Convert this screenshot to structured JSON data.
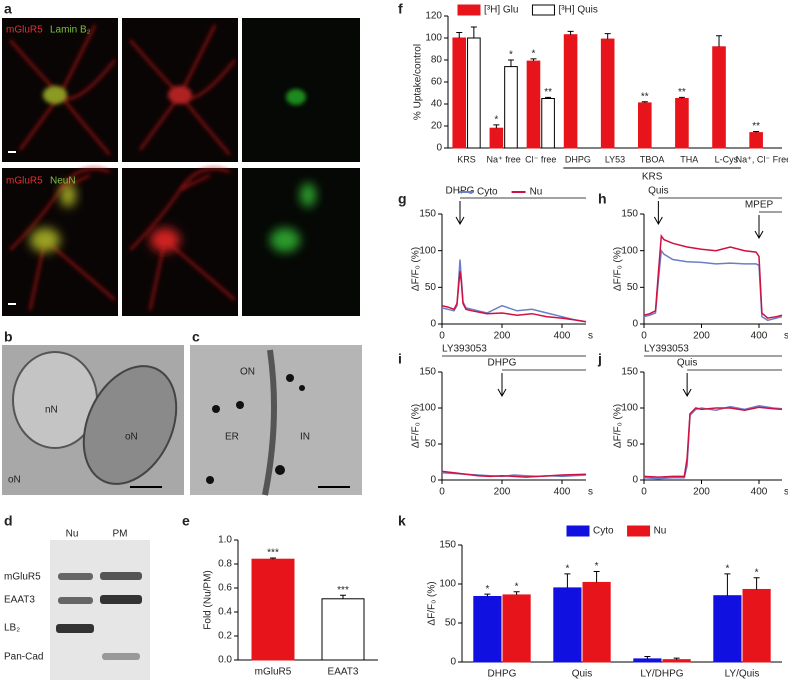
{
  "panel_letters": [
    "a",
    "b",
    "c",
    "d",
    "e",
    "f",
    "g",
    "h",
    "i",
    "j",
    "k"
  ],
  "panel_a": {
    "top_labels": [
      "mGluR5",
      "Lamin B₂"
    ],
    "bottom_labels": [
      "mGluR5",
      "NeuN"
    ]
  },
  "panel_b": {
    "labels": [
      "nN",
      "oN",
      "oN"
    ]
  },
  "panel_c": {
    "labels": [
      "ON",
      "ER",
      "IN"
    ]
  },
  "panel_d": {
    "columns": [
      "Nu",
      "PM"
    ],
    "rows": [
      "mGluR5",
      "EAAT3",
      "LB₂",
      "Pan-Cad"
    ]
  },
  "chart_data": [
    {
      "type": "bar",
      "ylabel": "% Uptake/control",
      "categories": [
        "KRS",
        "Na⁺ free",
        "Cl⁻ free",
        "DHPG",
        "LY53",
        "TBOA",
        "THA",
        "L-Cys",
        "Na⁺, Cl⁻ Free"
      ],
      "group_label": "KRS",
      "series": [
        {
          "name": "[³H] Glu",
          "color": "#e8141b",
          "values": [
            100,
            18,
            79,
            103,
            99,
            41,
            45,
            92,
            14
          ],
          "errors": [
            5,
            3,
            2,
            3,
            5,
            1,
            1,
            10,
            1
          ],
          "significance": [
            null,
            "*",
            "*",
            null,
            null,
            "**",
            "**",
            null,
            "**"
          ]
        },
        {
          "name": "[³H] Quis",
          "color": "#ffffff",
          "values": [
            100,
            74,
            45,
            null,
            null,
            null,
            null,
            null,
            null
          ],
          "errors": [
            10,
            6,
            1,
            null,
            null,
            null,
            null,
            null,
            null
          ],
          "significance": [
            null,
            "*",
            "**",
            null,
            null,
            null,
            null,
            null,
            null
          ]
        }
      ],
      "ylim": [
        0,
        120
      ],
      "yticks": [
        0,
        20,
        40,
        60,
        80,
        100,
        120
      ]
    },
    {
      "type": "bar",
      "ylabel": "Fold (Nu/PM)",
      "categories": [
        "mGluR5",
        "EAAT3"
      ],
      "series": [
        {
          "colors": [
            "#e8141b",
            "#ffffff"
          ],
          "values": [
            0.84,
            0.51
          ],
          "errors": [
            0.01,
            0.03
          ],
          "significance": [
            "***",
            "***"
          ]
        }
      ],
      "ylim": [
        0,
        1.0
      ],
      "yticks": [
        {
          "value": 0,
          "label": "0.0"
        },
        0.2,
        0.4,
        0.6,
        0.8,
        {
          "value": 1.0,
          "label": "1.0"
        }
      ]
    },
    {
      "type": "bar",
      "ylabel": "ΔF/F₀ (%)",
      "categories": [
        "DHPG",
        "Quis",
        "LY/DHPG",
        "LY/Quis"
      ],
      "series": [
        {
          "name": "Cyto",
          "color": "#1010e0",
          "values": [
            84,
            95,
            4,
            85
          ],
          "errors": [
            3,
            18,
            3,
            28
          ],
          "significance": [
            "*",
            "*",
            null,
            "*"
          ]
        },
        {
          "name": "Nu",
          "color": "#e8141b",
          "values": [
            86,
            102,
            3,
            93
          ],
          "errors": [
            4,
            14,
            2,
            15
          ],
          "significance": [
            "*",
            "*",
            null,
            "*"
          ]
        }
      ],
      "ylim": [
        0,
        150
      ],
      "yticks": [
        0,
        50,
        100,
        150
      ]
    },
    {
      "type": "line",
      "ylabel": "ΔF/F₀ (%)",
      "xlabel": "s",
      "annotations": [
        {
          "text": "DHPG",
          "x": 60
        }
      ],
      "x": [
        0,
        20,
        40,
        50,
        60,
        65,
        70,
        80,
        100,
        150,
        200,
        250,
        300,
        350,
        400,
        450,
        480
      ],
      "series": [
        {
          "name": "Cyto",
          "color": "#6a7fc8",
          "values": [
            22,
            20,
            18,
            25,
            88,
            60,
            30,
            22,
            20,
            15,
            25,
            18,
            20,
            15,
            10,
            5,
            3
          ]
        },
        {
          "name": "Nu",
          "color": "#d01040",
          "values": [
            25,
            23,
            20,
            28,
            72,
            55,
            28,
            20,
            18,
            14,
            15,
            12,
            14,
            10,
            8,
            5,
            3
          ]
        }
      ],
      "xlim": [
        0,
        480
      ],
      "xticks": [
        0,
        200,
        400
      ],
      "ylim": [
        0,
        150
      ],
      "yticks": [
        0,
        50,
        100,
        150
      ]
    },
    {
      "type": "line",
      "ylabel": "ΔF/F₀ (%)",
      "xlabel": "s",
      "annotations": [
        {
          "text": "Quis",
          "x": 50
        },
        {
          "text": "MPEP",
          "x": 400
        }
      ],
      "x": [
        0,
        20,
        40,
        50,
        60,
        70,
        100,
        150,
        200,
        250,
        300,
        350,
        390,
        400,
        410,
        430,
        460,
        480
      ],
      "series": [
        {
          "color": "#6a7fc8",
          "values": [
            10,
            12,
            15,
            60,
            100,
            95,
            88,
            85,
            84,
            82,
            83,
            82,
            82,
            80,
            10,
            5,
            8,
            10
          ]
        },
        {
          "color": "#d01040",
          "values": [
            12,
            14,
            18,
            70,
            120,
            115,
            110,
            105,
            102,
            100,
            105,
            100,
            98,
            92,
            15,
            8,
            10,
            12
          ]
        }
      ],
      "xlim": [
        0,
        480
      ],
      "xticks": [
        0,
        200,
        400
      ],
      "ylim": [
        0,
        150
      ],
      "yticks": [
        0,
        50,
        100,
        150
      ]
    },
    {
      "type": "line",
      "ylabel": "ΔF/F₀ (%)",
      "xlabel": "s",
      "annotations": [
        {
          "text": "LY393053",
          "x": 0
        },
        {
          "text": "DHPG",
          "x": 200
        }
      ],
      "x": [
        0,
        40,
        80,
        120,
        160,
        200,
        240,
        280,
        320,
        360,
        400,
        480
      ],
      "series": [
        {
          "color": "#6a7fc8",
          "values": [
            10,
            9,
            8,
            7,
            6,
            5,
            7,
            6,
            5,
            6,
            5,
            7
          ]
        },
        {
          "color": "#d01040",
          "values": [
            12,
            10,
            8,
            6,
            5,
            6,
            5,
            4,
            5,
            6,
            7,
            8
          ]
        }
      ],
      "xlim": [
        0,
        480
      ],
      "xticks": [
        0,
        200,
        400
      ],
      "ylim": [
        0,
        150
      ],
      "yticks": [
        0,
        50,
        100,
        150
      ]
    },
    {
      "type": "line",
      "ylabel": "ΔF/F₀ (%)",
      "xlabel": "s",
      "annotations": [
        {
          "text": "LY393053",
          "x": 0
        },
        {
          "text": "Quis",
          "x": 150
        }
      ],
      "x": [
        0,
        50,
        100,
        140,
        150,
        160,
        180,
        200,
        250,
        300,
        350,
        400,
        450,
        480
      ],
      "series": [
        {
          "color": "#6a7fc8",
          "values": [
            3,
            2,
            3,
            3,
            20,
            90,
            98,
            100,
            97,
            102,
            98,
            103,
            100,
            99
          ]
        },
        {
          "color": "#d01040",
          "values": [
            5,
            4,
            5,
            5,
            30,
            92,
            100,
            98,
            100,
            100,
            97,
            101,
            99,
            98
          ]
        }
      ],
      "xlim": [
        0,
        480
      ],
      "xticks": [
        0,
        200,
        400
      ],
      "ylim": [
        0,
        150
      ],
      "yticks": [
        0,
        50,
        100,
        150
      ]
    }
  ]
}
